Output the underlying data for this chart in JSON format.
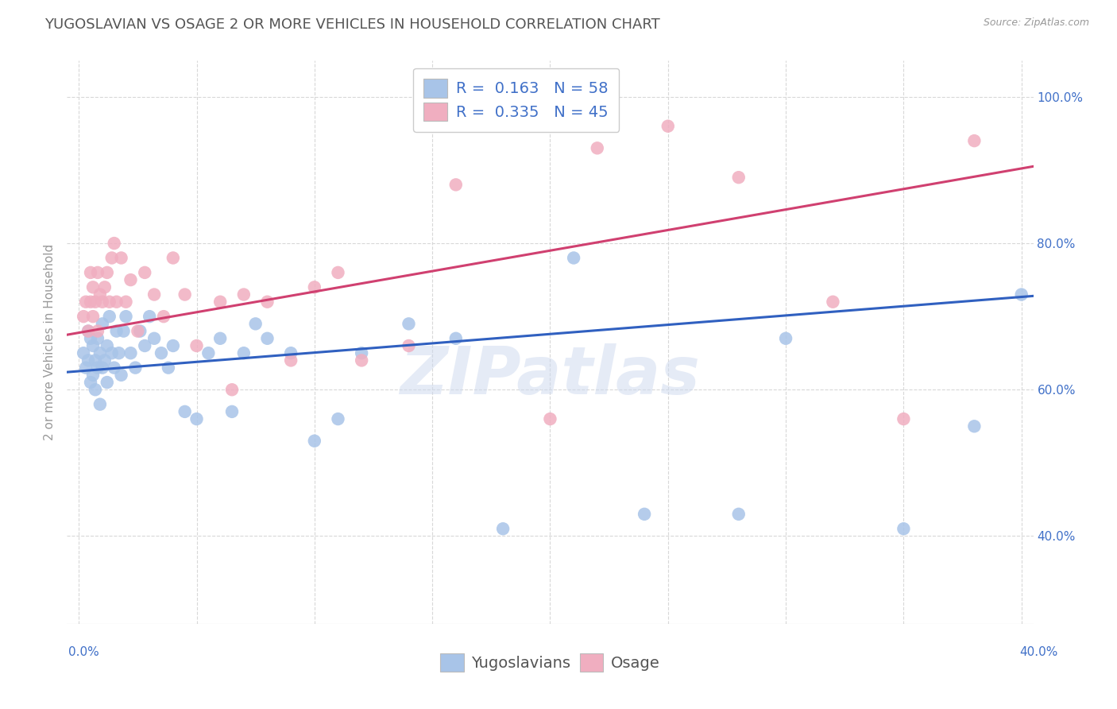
{
  "title": "YUGOSLAVIAN VS OSAGE 2 OR MORE VEHICLES IN HOUSEHOLD CORRELATION CHART",
  "source": "Source: ZipAtlas.com",
  "ylabel": "2 or more Vehicles in Household",
  "r_yugo": 0.163,
  "n_yugo": 58,
  "r_osage": 0.335,
  "n_osage": 45,
  "yugo_color": "#a8c4e8",
  "osage_color": "#f0aec0",
  "yugo_line_color": "#3060c0",
  "osage_line_color": "#d04070",
  "label_color": "#4070c8",
  "watermark": "ZIPatlas",
  "title_color": "#555555",
  "grid_color": "#d8d8d8",
  "title_fontsize": 13,
  "axis_label_fontsize": 11,
  "tick_fontsize": 11,
  "legend_fontsize": 14,
  "xlim": [
    -0.005,
    0.405
  ],
  "ylim": [
    0.28,
    1.05
  ],
  "yugo_x": [
    0.002,
    0.003,
    0.004,
    0.004,
    0.005,
    0.005,
    0.006,
    0.006,
    0.007,
    0.007,
    0.008,
    0.008,
    0.009,
    0.009,
    0.01,
    0.01,
    0.011,
    0.012,
    0.012,
    0.013,
    0.014,
    0.015,
    0.016,
    0.017,
    0.018,
    0.019,
    0.02,
    0.022,
    0.024,
    0.026,
    0.028,
    0.03,
    0.032,
    0.035,
    0.038,
    0.04,
    0.045,
    0.05,
    0.055,
    0.06,
    0.065,
    0.07,
    0.075,
    0.08,
    0.09,
    0.1,
    0.11,
    0.12,
    0.14,
    0.16,
    0.18,
    0.21,
    0.24,
    0.28,
    0.3,
    0.35,
    0.38,
    0.4
  ],
  "yugo_y": [
    0.65,
    0.63,
    0.64,
    0.68,
    0.61,
    0.67,
    0.62,
    0.66,
    0.6,
    0.64,
    0.63,
    0.67,
    0.58,
    0.65,
    0.63,
    0.69,
    0.64,
    0.61,
    0.66,
    0.7,
    0.65,
    0.63,
    0.68,
    0.65,
    0.62,
    0.68,
    0.7,
    0.65,
    0.63,
    0.68,
    0.66,
    0.7,
    0.67,
    0.65,
    0.63,
    0.66,
    0.57,
    0.56,
    0.65,
    0.67,
    0.57,
    0.65,
    0.69,
    0.67,
    0.65,
    0.53,
    0.56,
    0.65,
    0.69,
    0.67,
    0.41,
    0.78,
    0.43,
    0.43,
    0.67,
    0.41,
    0.55,
    0.73
  ],
  "osage_x": [
    0.002,
    0.003,
    0.004,
    0.005,
    0.005,
    0.006,
    0.006,
    0.007,
    0.008,
    0.008,
    0.009,
    0.01,
    0.011,
    0.012,
    0.013,
    0.014,
    0.015,
    0.016,
    0.018,
    0.02,
    0.022,
    0.025,
    0.028,
    0.032,
    0.036,
    0.04,
    0.045,
    0.05,
    0.06,
    0.065,
    0.07,
    0.08,
    0.09,
    0.1,
    0.11,
    0.12,
    0.14,
    0.16,
    0.2,
    0.22,
    0.25,
    0.28,
    0.32,
    0.35,
    0.38
  ],
  "osage_y": [
    0.7,
    0.72,
    0.68,
    0.72,
    0.76,
    0.7,
    0.74,
    0.72,
    0.68,
    0.76,
    0.73,
    0.72,
    0.74,
    0.76,
    0.72,
    0.78,
    0.8,
    0.72,
    0.78,
    0.72,
    0.75,
    0.68,
    0.76,
    0.73,
    0.7,
    0.78,
    0.73,
    0.66,
    0.72,
    0.6,
    0.73,
    0.72,
    0.64,
    0.74,
    0.76,
    0.64,
    0.66,
    0.88,
    0.56,
    0.93,
    0.96,
    0.89,
    0.72,
    0.56,
    0.94
  ],
  "yugo_line_x0": -0.005,
  "yugo_line_x1": 0.405,
  "yugo_line_y0": 0.624,
  "yugo_line_y1": 0.728,
  "osage_line_x0": -0.005,
  "osage_line_x1": 0.405,
  "osage_line_y0": 0.675,
  "osage_line_y1": 0.905
}
